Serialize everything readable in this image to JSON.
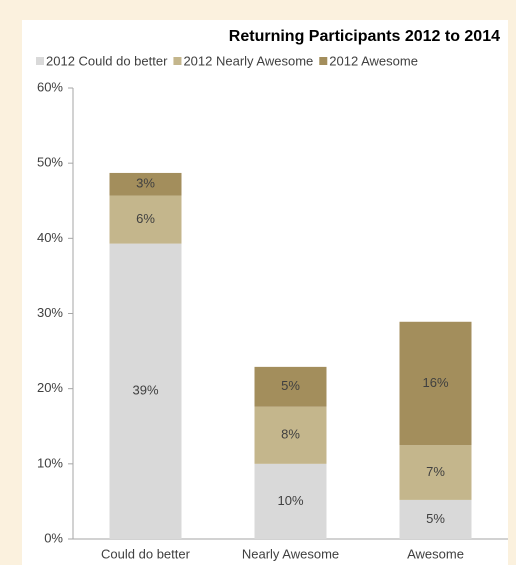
{
  "chart_data": {
    "type": "stacked_bar",
    "title": "Returning Participants 2012 to 2014",
    "categories": [
      "Could do better",
      "Nearly Awesome",
      "Awesome"
    ],
    "series": [
      {
        "name": "2012 Could do better",
        "color": "#d9d9d9",
        "values": [
          39.3,
          10.0,
          5.2
        ],
        "value_labels": [
          "39%",
          "10%",
          "5%"
        ]
      },
      {
        "name": "2012 Nearly Awesome",
        "color": "#c4b68c",
        "values": [
          6.4,
          7.6,
          7.3
        ],
        "value_labels": [
          "6%",
          "8%",
          "7%"
        ]
      },
      {
        "name": "2012 Awesome",
        "color": "#a38e5c",
        "values": [
          3.0,
          5.3,
          16.4
        ],
        "value_labels": [
          "3%",
          "5%",
          "16%"
        ]
      }
    ],
    "ylim": [
      0,
      60
    ],
    "yticks": [
      {
        "value": 0,
        "label": "0%"
      },
      {
        "value": 10,
        "label": "10%"
      },
      {
        "value": 20,
        "label": "20%"
      },
      {
        "value": 30,
        "label": "30%"
      },
      {
        "value": 40,
        "label": "40%"
      },
      {
        "value": 50,
        "label": "50%"
      },
      {
        "value": 60,
        "label": "60%"
      }
    ],
    "legend": "top"
  }
}
